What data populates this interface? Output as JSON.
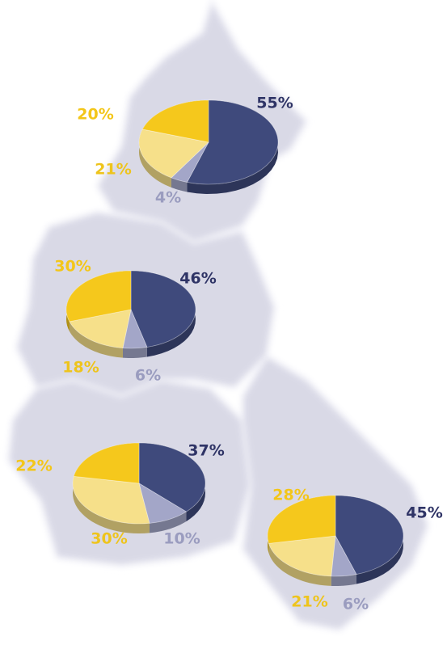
{
  "chart_data": [
    {
      "type": "pie",
      "values": [
        55,
        4,
        21,
        20
      ],
      "value_labels": [
        "55%",
        "4%",
        "21%",
        "20%"
      ],
      "colors": [
        "#3f4a7c",
        "#a3a6c8",
        "#f6e08a",
        "#f5c81c"
      ]
    },
    {
      "type": "pie",
      "values": [
        46,
        6,
        18,
        30
      ],
      "value_labels": [
        "46%",
        "6%",
        "18%",
        "30%"
      ],
      "colors": [
        "#3f4a7c",
        "#a3a6c8",
        "#f6e08a",
        "#f5c81c"
      ]
    },
    {
      "type": "pie",
      "values": [
        37,
        10,
        30,
        22
      ],
      "value_labels": [
        "37%",
        "10%",
        "30%",
        "22%"
      ],
      "colors": [
        "#3f4a7c",
        "#a3a6c8",
        "#f6e08a",
        "#f5c81c"
      ]
    },
    {
      "type": "pie",
      "values": [
        45,
        6,
        21,
        28
      ],
      "value_labels": [
        "45%",
        "6%",
        "21%",
        "28%"
      ],
      "colors": [
        "#3f4a7c",
        "#a3a6c8",
        "#f6e08a",
        "#f5c81c"
      ]
    }
  ]
}
